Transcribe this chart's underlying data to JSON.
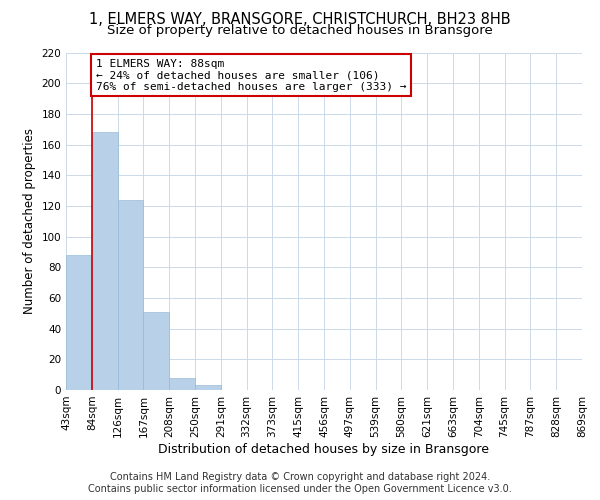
{
  "title": "1, ELMERS WAY, BRANSGORE, CHRISTCHURCH, BH23 8HB",
  "subtitle": "Size of property relative to detached houses in Bransgore",
  "xlabel": "Distribution of detached houses by size in Bransgore",
  "ylabel": "Number of detached properties",
  "bar_values": [
    88,
    168,
    124,
    51,
    8,
    3,
    0,
    0,
    0,
    0,
    0,
    0,
    0,
    0,
    0,
    0,
    0,
    0,
    0,
    0
  ],
  "bin_labels": [
    "43sqm",
    "84sqm",
    "126sqm",
    "167sqm",
    "208sqm",
    "250sqm",
    "291sqm",
    "332sqm",
    "373sqm",
    "415sqm",
    "456sqm",
    "497sqm",
    "539sqm",
    "580sqm",
    "621sqm",
    "663sqm",
    "704sqm",
    "745sqm",
    "787sqm",
    "828sqm",
    "869sqm"
  ],
  "bar_color": "#b8d0e8",
  "property_line_color": "#cc0000",
  "property_line_bin": 1,
  "annotation_title": "1 ELMERS WAY: 88sqm",
  "annotation_line1": "← 24% of detached houses are smaller (106)",
  "annotation_line2": "76% of semi-detached houses are larger (333) →",
  "annotation_box_color": "#ffffff",
  "annotation_box_edge": "#cc0000",
  "ylim": [
    0,
    220
  ],
  "yticks": [
    0,
    20,
    40,
    60,
    80,
    100,
    120,
    140,
    160,
    180,
    200,
    220
  ],
  "grid_color": "#ccd9e8",
  "footer_line1": "Contains HM Land Registry data © Crown copyright and database right 2024.",
  "footer_line2": "Contains public sector information licensed under the Open Government Licence v3.0.",
  "title_fontsize": 10.5,
  "subtitle_fontsize": 9.5,
  "xlabel_fontsize": 9,
  "ylabel_fontsize": 8.5,
  "footer_fontsize": 7,
  "tick_fontsize": 7.5
}
